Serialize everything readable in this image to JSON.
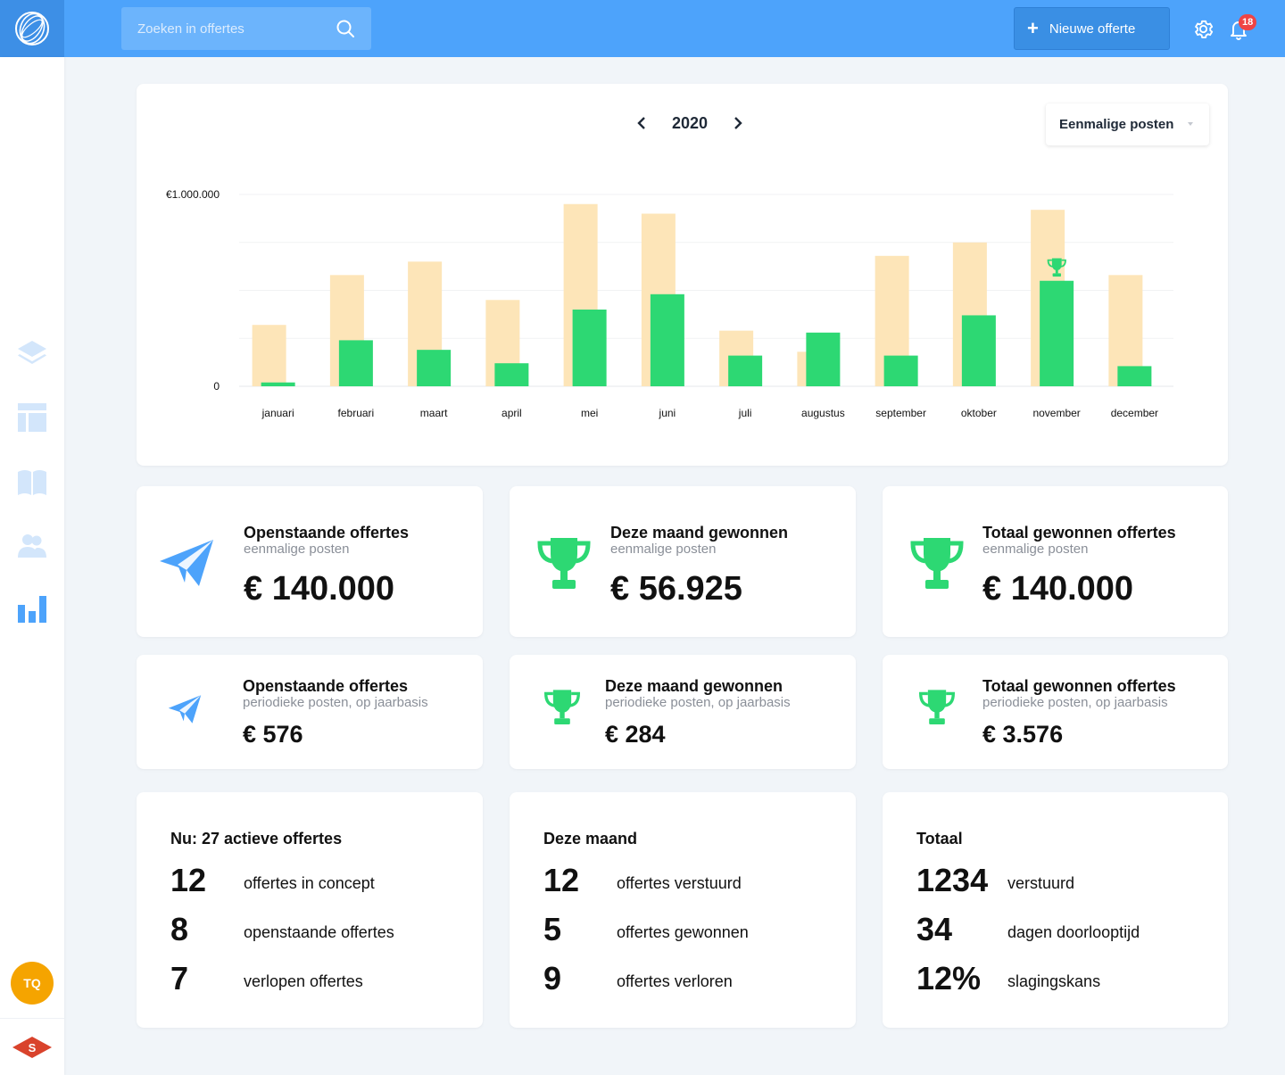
{
  "search": {
    "placeholder": "Zoeken in offertes"
  },
  "header": {
    "new_button_label": "Nieuwe offerte",
    "notification_count": "18"
  },
  "sidebar": {
    "items": [
      "layers-icon",
      "layout-icon",
      "book-icon",
      "users-icon",
      "bar-chart-icon"
    ],
    "avatar_initials": "TQ",
    "brand_letter": "S"
  },
  "chart_card": {
    "year": "2020",
    "filter_selected": "Eenmalige posten"
  },
  "chart_data": {
    "type": "bar",
    "categories": [
      "januari",
      "februari",
      "maart",
      "april",
      "mei",
      "juni",
      "juli",
      "augustus",
      "september",
      "oktober",
      "november",
      "december"
    ],
    "series": [
      {
        "values": [
          320000,
          580000,
          650000,
          450000,
          950000,
          900000,
          290000,
          180000,
          680000,
          750000,
          920000,
          580000
        ],
        "color": "#fde5b8"
      },
      {
        "values": [
          20000,
          240000,
          190000,
          120000,
          400000,
          480000,
          160000,
          280000,
          160000,
          370000,
          550000,
          105000
        ],
        "color": "#2dd873"
      }
    ],
    "y_tick_labels": [
      "0",
      "€1.000.000"
    ],
    "ylim": [
      0,
      1000000
    ],
    "highlight": {
      "category": "november",
      "icon": "trophy-icon"
    },
    "grid": true
  },
  "stats_large": [
    {
      "title": "Openstaande offertes",
      "subtitle": "eenmalige posten",
      "value": "€ 140.000",
      "icon": "paper-plane-icon",
      "color": "#4da3fb"
    },
    {
      "title": "Deze maand gewonnen",
      "subtitle": "eenmalige posten",
      "value": "€ 56.925",
      "icon": "trophy-icon",
      "color": "#2dd873"
    },
    {
      "title": "Totaal gewonnen offertes",
      "subtitle": "eenmalige posten",
      "value": "€ 140.000",
      "icon": "trophy-icon",
      "color": "#2dd873"
    }
  ],
  "stats_small": [
    {
      "title": "Openstaande offertes",
      "subtitle": "periodieke posten, op jaarbasis",
      "value": "€ 576",
      "icon": "paper-plane-icon"
    },
    {
      "title": "Deze maand gewonnen",
      "subtitle": "periodieke posten, op jaarbasis",
      "value": "€ 284",
      "icon": "trophy-icon"
    },
    {
      "title": "Totaal gewonnen offertes",
      "subtitle": "periodieke posten, op jaarbasis",
      "value": "€ 3.576",
      "icon": "trophy-icon"
    }
  ],
  "lists": [
    {
      "heading": "Nu: 27 actieve offertes",
      "rows": [
        {
          "num": "12",
          "label": "offertes in concept"
        },
        {
          "num": "8",
          "label": "openstaande offertes"
        },
        {
          "num": "7",
          "label": "verlopen offertes"
        }
      ]
    },
    {
      "heading": "Deze maand",
      "rows": [
        {
          "num": "12",
          "label": "offertes verstuurd"
        },
        {
          "num": "5",
          "label": "offertes gewonnen"
        },
        {
          "num": "9",
          "label": "offertes verloren"
        }
      ]
    },
    {
      "heading": "Totaal",
      "rows": [
        {
          "num": "1234",
          "label": "verstuurd"
        },
        {
          "num": "34",
          "label": "dagen doorlooptijd"
        },
        {
          "num": "12%",
          "label": "slagingskans"
        }
      ]
    }
  ]
}
